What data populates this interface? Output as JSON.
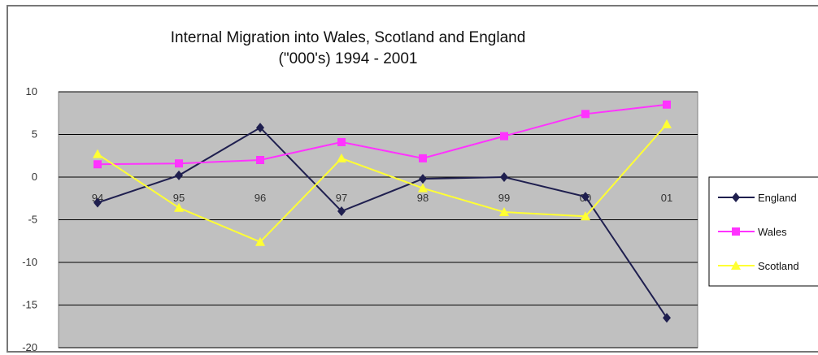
{
  "chart_data": {
    "type": "line",
    "title_line1": "Internal Migration into Wales, Scotland and England",
    "title_line2": "(\"000's) 1994 - 2001",
    "categories": [
      "94",
      "95",
      "96",
      "97",
      "98",
      "99",
      "00",
      "01"
    ],
    "ylim": [
      -20,
      10
    ],
    "yticks": [
      10,
      5,
      0,
      -5,
      -10,
      -15,
      -20
    ],
    "grid": true,
    "legend_position": "right",
    "series": [
      {
        "name": "England",
        "color": "#1f1f4f",
        "marker": "diamond",
        "values": [
          -3,
          0.2,
          5.8,
          -4,
          -0.2,
          0,
          -2.3,
          -16.5
        ]
      },
      {
        "name": "Wales",
        "color": "#ff33ff",
        "marker": "square",
        "values": [
          1.5,
          1.6,
          2,
          4.1,
          2.2,
          4.8,
          7.4,
          8.5
        ]
      },
      {
        "name": "Scotland",
        "color": "#ffff33",
        "marker": "triangle",
        "values": [
          2.7,
          -3.6,
          -7.6,
          2.2,
          -1.3,
          -4.1,
          -4.6,
          6.2
        ]
      }
    ]
  }
}
